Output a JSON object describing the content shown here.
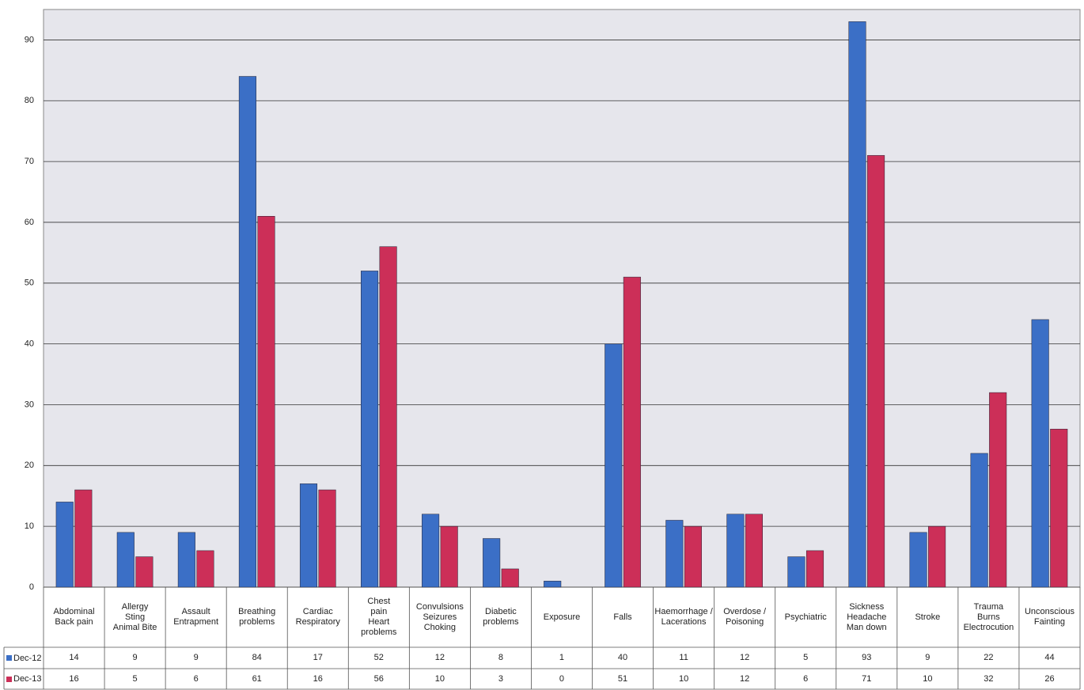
{
  "chart_data": {
    "type": "bar",
    "categories": [
      "Abdominal\nBack pain",
      "Allergy\nSting\nAnimal Bite",
      "Assault\nEntrapment",
      "Breathing\nproblems",
      "Cardiac\nRespiratory",
      "Chest\npain\nHeart\nproblems",
      "Convulsions\nSeizures\nChoking",
      "Diabetic\nproblems",
      "Exposure",
      "Falls",
      "Haemorrhage /\nLacerations",
      "Overdose /\nPoisoning",
      "Psychiatric",
      "Sickness\nHeadache\nMan down",
      "Stroke",
      "Trauma\nBurns\nElectrocution",
      "Unconscious\nFainting"
    ],
    "series": [
      {
        "name": "Dec-12",
        "color": "#3b6fc6",
        "values": [
          14,
          9,
          9,
          84,
          17,
          52,
          12,
          8,
          1,
          40,
          11,
          12,
          5,
          93,
          9,
          22,
          44
        ]
      },
      {
        "name": "Dec-13",
        "color": "#cc2f58",
        "values": [
          16,
          5,
          6,
          61,
          16,
          56,
          10,
          3,
          0,
          51,
          10,
          12,
          6,
          71,
          10,
          32,
          26
        ]
      }
    ],
    "ylim": [
      0,
      95
    ],
    "yticks": [
      0,
      10,
      20,
      30,
      40,
      50,
      60,
      70,
      80,
      90
    ],
    "grid": true
  }
}
